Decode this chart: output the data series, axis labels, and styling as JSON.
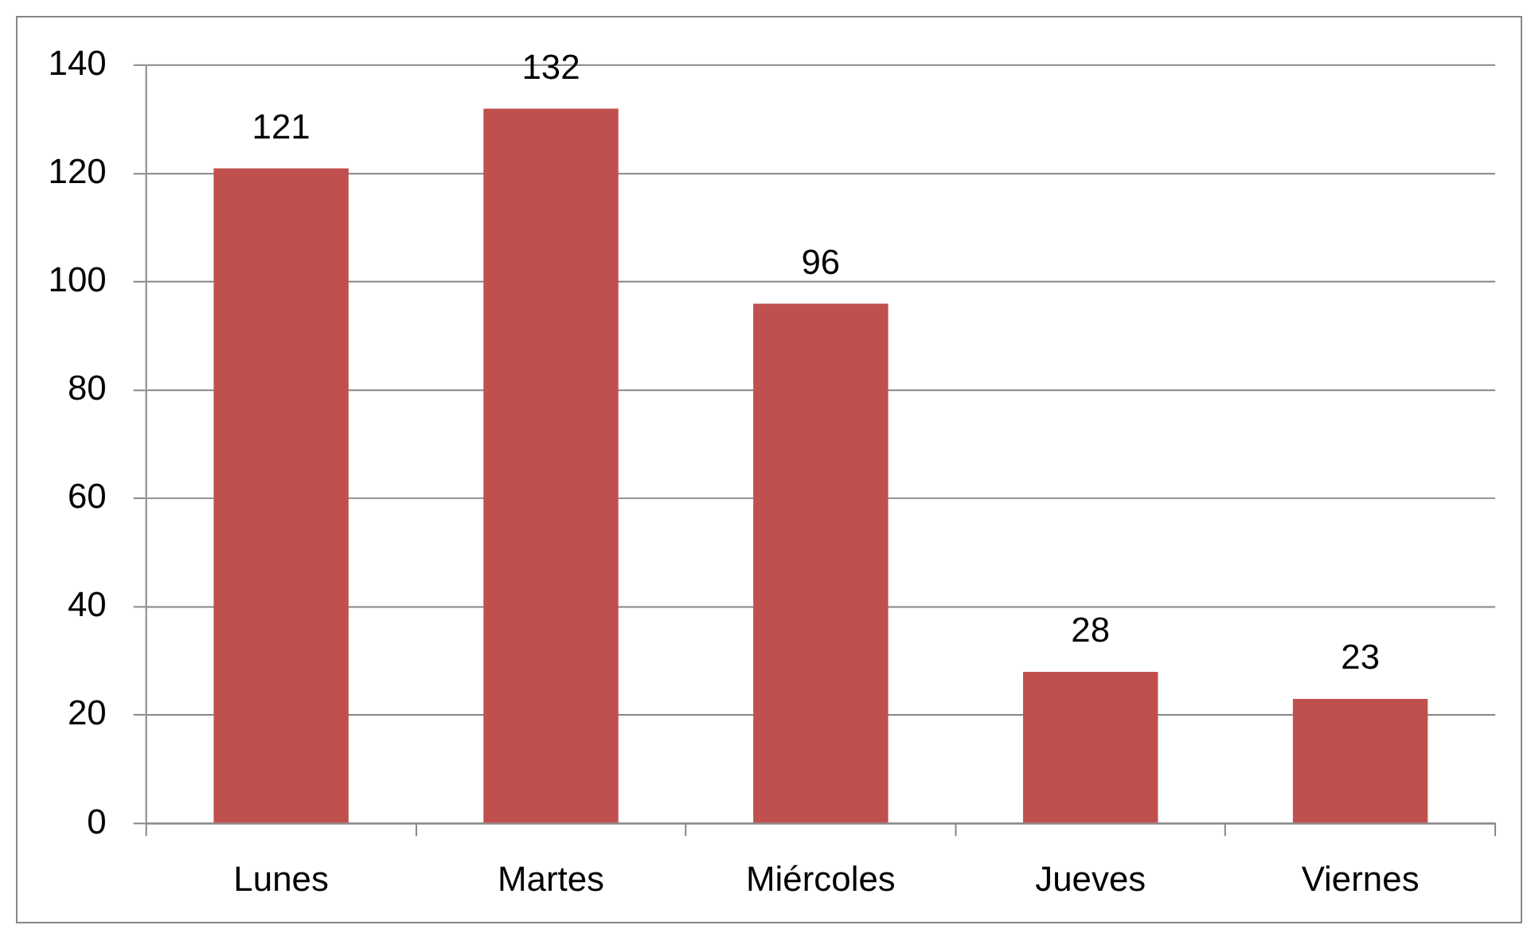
{
  "chart_data": {
    "type": "bar",
    "categories": [
      "Lunes",
      "Martes",
      "Miércoles",
      "Jueves",
      "Viernes"
    ],
    "values": [
      121,
      132,
      96,
      28,
      23
    ],
    "color": "#c0504d",
    "ylim": [
      0,
      140
    ],
    "yticks": [
      0,
      20,
      40,
      60,
      80,
      100,
      120,
      140
    ],
    "grid": "y",
    "data_labels": true
  }
}
